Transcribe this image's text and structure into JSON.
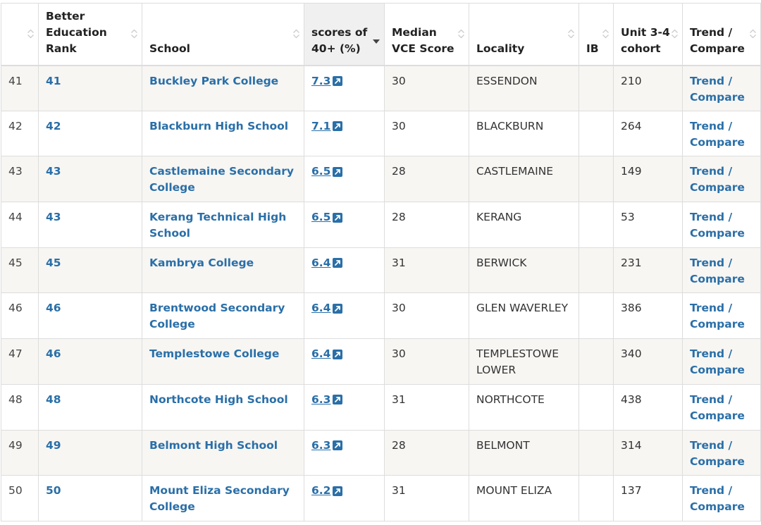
{
  "colors": {
    "link": "#2a6fa8",
    "header_sorted_bg": "#f0f0f0",
    "row_stripe": "#f7f6f3"
  },
  "headers": {
    "index": "",
    "rank": "Better Education Rank",
    "school": "School",
    "scores": "scores of 40+ (%)",
    "median": "Median VCE Score",
    "locality": "Locality",
    "ib": "IB",
    "cohort": "Unit 3-4 cohort",
    "trend": "Trend / Compare"
  },
  "rows": [
    {
      "index": "41",
      "rank": "41",
      "school": "Buckley Park College",
      "scores": "7.3",
      "median": "30",
      "locality": "ESSENDON",
      "ib": "",
      "cohort": "210",
      "trend": "Trend / Compare"
    },
    {
      "index": "42",
      "rank": "42",
      "school": "Blackburn High School",
      "scores": "7.1",
      "median": "30",
      "locality": "BLACKBURN",
      "ib": "",
      "cohort": "264",
      "trend": "Trend / Compare"
    },
    {
      "index": "43",
      "rank": "43",
      "school": "Castlemaine Secondary College",
      "scores": "6.5",
      "median": "28",
      "locality": "CASTLEMAINE",
      "ib": "",
      "cohort": "149",
      "trend": "Trend / Compare"
    },
    {
      "index": "44",
      "rank": "43",
      "school": "Kerang Technical High School",
      "scores": "6.5",
      "median": "28",
      "locality": "KERANG",
      "ib": "",
      "cohort": "53",
      "trend": "Trend / Compare"
    },
    {
      "index": "45",
      "rank": "45",
      "school": "Kambrya College",
      "scores": "6.4",
      "median": "31",
      "locality": "BERWICK",
      "ib": "",
      "cohort": "231",
      "trend": "Trend / Compare"
    },
    {
      "index": "46",
      "rank": "46",
      "school": "Brentwood Secondary College",
      "scores": "6.4",
      "median": "30",
      "locality": "GLEN WAVERLEY",
      "ib": "",
      "cohort": "386",
      "trend": "Trend / Compare"
    },
    {
      "index": "47",
      "rank": "46",
      "school": "Templestowe College",
      "scores": "6.4",
      "median": "30",
      "locality": "TEMPLESTOWE LOWER",
      "ib": "",
      "cohort": "340",
      "trend": "Trend / Compare"
    },
    {
      "index": "48",
      "rank": "48",
      "school": "Northcote High School",
      "scores": "6.3",
      "median": "31",
      "locality": "NORTHCOTE",
      "ib": "",
      "cohort": "438",
      "trend": "Trend / Compare"
    },
    {
      "index": "49",
      "rank": "49",
      "school": "Belmont High School",
      "scores": "6.3",
      "median": "28",
      "locality": "BELMONT",
      "ib": "",
      "cohort": "314",
      "trend": "Trend / Compare"
    },
    {
      "index": "50",
      "rank": "50",
      "school": "Mount Eliza Secondary College",
      "scores": "6.2",
      "median": "31",
      "locality": "MOUNT ELIZA",
      "ib": "",
      "cohort": "137",
      "trend": "Trend / Compare"
    }
  ]
}
